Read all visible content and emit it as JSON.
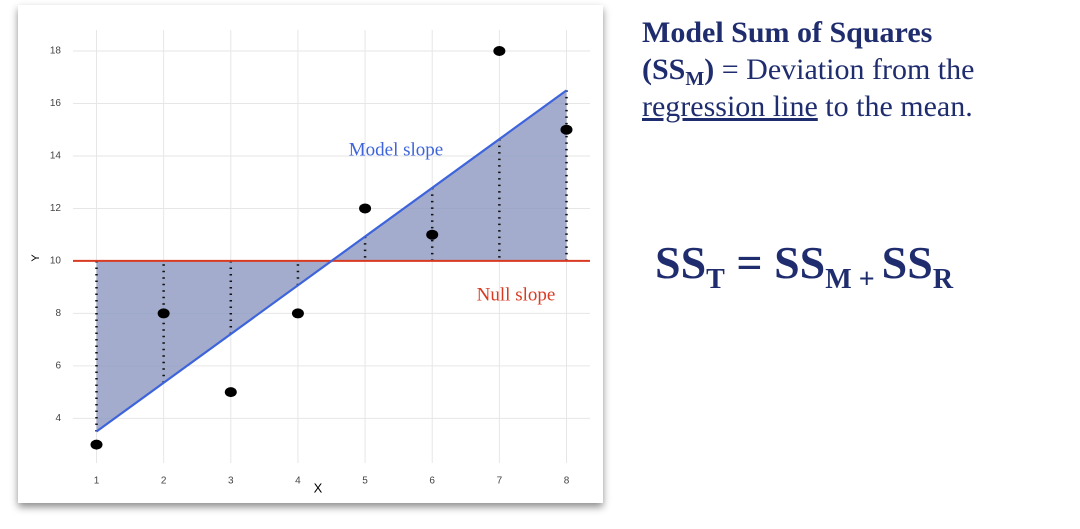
{
  "chart_data": {
    "type": "scatter",
    "x_label": "X",
    "y_label": "Y",
    "x": [
      1,
      2,
      3,
      4,
      5,
      6,
      7,
      8
    ],
    "values": [
      3,
      8,
      5,
      8,
      12,
      11,
      18,
      15
    ],
    "color": "#000000",
    "model_line": {
      "x": [
        1,
        8
      ],
      "values": [
        3.5,
        16.5
      ],
      "color": "#3e64dc"
    },
    "null_line": {
      "value": 10,
      "color": "#d83a22"
    },
    "area_color": "#8c97bf",
    "annotations": [
      "Model slope",
      "Null slope"
    ],
    "xlim": [
      0.65,
      8.35
    ],
    "ylim": [
      2.3,
      18.8
    ],
    "xticks": [
      1,
      2,
      3,
      4,
      5,
      6,
      7,
      8
    ],
    "yticks": [
      4,
      6,
      8,
      10,
      12,
      14,
      16,
      18
    ],
    "grid": true
  },
  "definition": [
    "Model Sum of Squares",
    "(SS",
    "M",
    ")",
    " = Deviation from the ",
    "regression line",
    " to the mean."
  ],
  "equation": [
    "SS",
    "T",
    " = ",
    "SS",
    "M",
    " + ",
    "SS",
    "R"
  ]
}
